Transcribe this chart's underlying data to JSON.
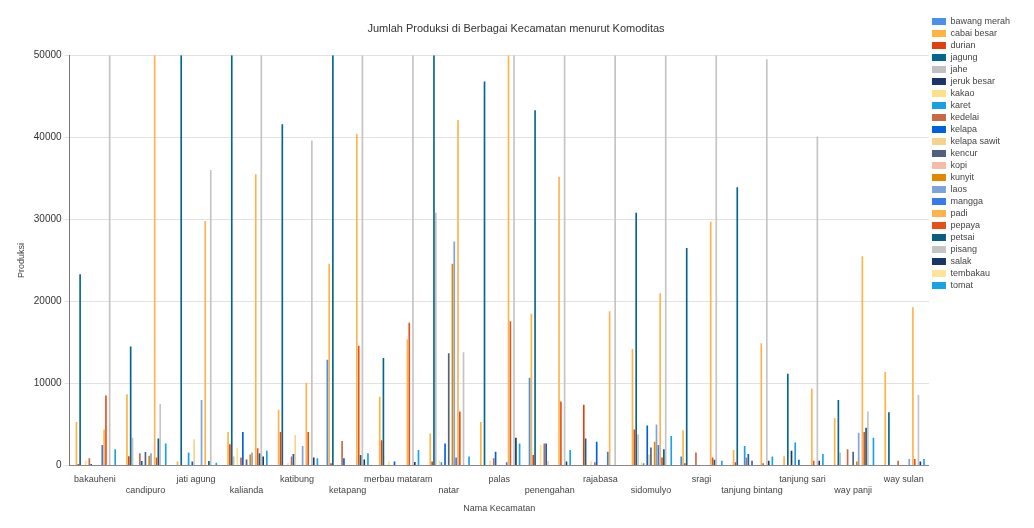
{
  "chart_data": {
    "type": "bar",
    "title": "Jumlah Produksi di Berbagai Kecamatan menurut Komoditas",
    "xlabel": "Nama Kecamatan",
    "ylabel": "Produksi",
    "categories": [
      "bakauheni",
      "candipuro",
      "jati agung",
      "kalianda",
      "katibung",
      "ketapang",
      "merbau mataram",
      "natar",
      "palas",
      "penengahan",
      "rajabasa",
      "sidomulyo",
      "sragi",
      "tanjung bintang",
      "tanjung sari",
      "way panji",
      "way sulan"
    ],
    "ylim": [
      0,
      50000
    ],
    "yticks": [
      0,
      10000,
      20000,
      30000,
      40000,
      50000
    ],
    "grid": "y",
    "legend": "right",
    "series": [
      {
        "name": "bawang merah",
        "color": "#4a8fe8",
        "values": [
          0,
          0,
          0,
          0,
          0,
          12900,
          0,
          0,
          0,
          10700,
          0,
          0,
          1100,
          0,
          0,
          0,
          0
        ]
      },
      {
        "name": "cabai besar",
        "color": "#ffb340",
        "values": [
          5300,
          8700,
          500,
          4100,
          6800,
          24600,
          8400,
          3900,
          5300,
          18500,
          0,
          14200,
          4300,
          1900,
          1150,
          5800,
          11400
        ]
      },
      {
        "name": "durian",
        "color": "#e04010",
        "values": [
          200,
          1150,
          0,
          2600,
          4100,
          300,
          3100,
          500,
          0,
          1300,
          7400,
          4400,
          300,
          400,
          0,
          0,
          0
        ]
      },
      {
        "name": "jagung",
        "color": "#05668d",
        "values": [
          23300,
          14500,
          50000,
          50000,
          41600,
          50000,
          13100,
          50000,
          46800,
          43300,
          3300,
          30800,
          26500,
          33900,
          11200,
          8000,
          6500
        ]
      },
      {
        "name": "jahe",
        "color": "#c0c0c0",
        "values": [
          0,
          3400,
          0,
          1100,
          0,
          0,
          0,
          30800,
          0,
          0,
          0,
          3800,
          0,
          0,
          0,
          1600,
          0
        ]
      },
      {
        "name": "jeruk besar",
        "color": "#1c3566",
        "values": [
          0,
          0,
          0,
          0,
          0,
          0,
          0,
          0,
          0,
          0,
          0,
          0,
          0,
          0,
          1800,
          0,
          0
        ]
      },
      {
        "name": "kakao",
        "color": "#ffe08a",
        "values": [
          600,
          0,
          0,
          2100,
          300,
          0,
          500,
          600,
          600,
          2500,
          500,
          400,
          0,
          0,
          0,
          0,
          0
        ]
      },
      {
        "name": "karet",
        "color": "#1a9fe0",
        "values": [
          0,
          0,
          1600,
          0,
          0,
          0,
          0,
          400,
          0,
          0,
          0,
          300,
          0,
          2400,
          2800,
          0,
          0
        ]
      },
      {
        "name": "kedelai",
        "color": "#c86848",
        "values": [
          900,
          1500,
          0,
          1000,
          1100,
          3000,
          0,
          0,
          900,
          2700,
          400,
          0,
          1600,
          1000,
          0,
          2000,
          600
        ]
      },
      {
        "name": "kelapa",
        "color": "#0060dd",
        "values": [
          200,
          550,
          500,
          4100,
          1400,
          900,
          500,
          2700,
          1700,
          2700,
          2900,
          4900,
          0,
          1400,
          700,
          0,
          0
        ]
      },
      {
        "name": "kelapa sawit",
        "color": "#f5d38c",
        "values": [
          0,
          0,
          3200,
          0,
          3700,
          0,
          0,
          0,
          0,
          600,
          0,
          1350,
          0,
          0,
          0,
          0,
          0
        ]
      },
      {
        "name": "kencur",
        "color": "#50617e",
        "values": [
          0,
          1650,
          0,
          750,
          0,
          0,
          0,
          13700,
          0,
          0,
          0,
          2200,
          0,
          600,
          0,
          1700,
          0
        ]
      },
      {
        "name": "kopi",
        "color": "#f2bca9",
        "values": [
          0,
          0,
          0,
          0,
          0,
          0,
          0,
          0,
          0,
          0,
          0,
          0,
          0,
          0,
          0,
          0,
          0
        ]
      },
      {
        "name": "kunyit",
        "color": "#e08800",
        "values": [
          0,
          1200,
          0,
          1350,
          0,
          0,
          0,
          24600,
          0,
          0,
          0,
          2900,
          0,
          0,
          0,
          500,
          0
        ]
      },
      {
        "name": "laos",
        "color": "#7ea3dc",
        "values": [
          0,
          1500,
          8000,
          1600,
          2400,
          0,
          0,
          27300,
          0,
          0,
          0,
          5000,
          0,
          0,
          0,
          4000,
          800
        ]
      },
      {
        "name": "mangga",
        "color": "#3a79e8",
        "values": [
          2500,
          0,
          0,
          0,
          0,
          0,
          0,
          1000,
          400,
          0,
          1700,
          2500,
          0,
          0,
          0,
          0,
          0
        ]
      },
      {
        "name": "padi",
        "color": "#ffb34d",
        "values": [
          4400,
          50000,
          29800,
          35500,
          10100,
          40400,
          15400,
          42100,
          50000,
          35200,
          18800,
          21000,
          29700,
          14900,
          9400,
          25500,
          19300
        ]
      },
      {
        "name": "pepaya",
        "color": "#e5501a",
        "values": [
          8550,
          1000,
          0,
          2100,
          4100,
          14600,
          17400,
          6600,
          17600,
          7800,
          0,
          1000,
          1000,
          300,
          600,
          4100,
          800
        ]
      },
      {
        "name": "petsai",
        "color": "#0b5d80",
        "values": [
          0,
          3300,
          550,
          1500,
          0,
          1300,
          0,
          0,
          0,
          0,
          0,
          2000,
          700,
          0,
          0,
          4600,
          0
        ]
      },
      {
        "name": "pisang",
        "color": "#c4c4c4",
        "values": [
          50000,
          7500,
          36000,
          50000,
          39600,
          50000,
          50000,
          13800,
          50000,
          50000,
          50000,
          50000,
          50000,
          49500,
          40100,
          6600,
          8600
        ]
      },
      {
        "name": "salak",
        "color": "#1a3566",
        "values": [
          0,
          0,
          0,
          1100,
          1000,
          750,
          450,
          0,
          3400,
          500,
          0,
          0,
          0,
          600,
          600,
          0,
          500
        ]
      },
      {
        "name": "tembakau",
        "color": "#ffe49a",
        "values": [
          0,
          0,
          0,
          0,
          0,
          0,
          0,
          0,
          0,
          0,
          0,
          0,
          0,
          0,
          0,
          0,
          0
        ]
      },
      {
        "name": "tomat",
        "color": "#1aa3e3",
        "values": [
          2000,
          2700,
          350,
          1800,
          900,
          1500,
          1900,
          1100,
          2700,
          1900,
          0,
          3600,
          600,
          1100,
          1400,
          3400,
          800
        ]
      }
    ]
  }
}
